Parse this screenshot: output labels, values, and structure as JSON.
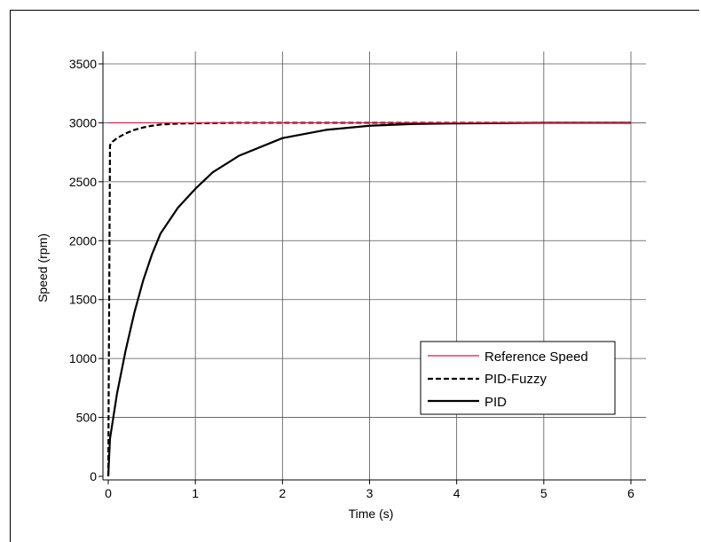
{
  "chart_data": {
    "type": "line",
    "title": "",
    "xlabel": "Time (s)",
    "ylabel": "Speed (rpm)",
    "xlim": [
      0,
      6
    ],
    "ylim": [
      0,
      3500
    ],
    "x_ticks": [
      "0",
      "1",
      "2",
      "3",
      "4",
      "5",
      "6"
    ],
    "y_ticks": [
      "0",
      "500",
      "1000",
      "1500",
      "2000",
      "2500",
      "3000",
      "3500"
    ],
    "grid": true,
    "legend_position": "lower-right",
    "series": [
      {
        "name": "Reference Speed",
        "color": "#d9143a",
        "style": "solid",
        "x": [
          0,
          6
        ],
        "y": [
          3000,
          3000
        ]
      },
      {
        "name": "PID-Fuzzy",
        "color": "#000000",
        "style": "dashed",
        "x": [
          0,
          0.02,
          0.05,
          0.1,
          0.2,
          0.3,
          0.4,
          0.5,
          0.6,
          0.8,
          1.0,
          1.5,
          2,
          3,
          4,
          5,
          6
        ],
        "y": [
          0,
          2810,
          2840,
          2870,
          2910,
          2940,
          2960,
          2975,
          2985,
          2993,
          2996,
          3000,
          3000,
          3000,
          3000,
          3000,
          3000
        ]
      },
      {
        "name": "PID",
        "color": "#000000",
        "style": "solid",
        "x": [
          0,
          0.02,
          0.1,
          0.2,
          0.3,
          0.4,
          0.5,
          0.6,
          0.8,
          1.0,
          1.2,
          1.5,
          2.0,
          2.5,
          3.0,
          3.5,
          4,
          5,
          6
        ],
        "y": [
          0,
          320,
          700,
          1070,
          1390,
          1660,
          1880,
          2060,
          2280,
          2440,
          2580,
          2720,
          2870,
          2940,
          2975,
          2990,
          2995,
          3000,
          3000
        ]
      }
    ]
  }
}
